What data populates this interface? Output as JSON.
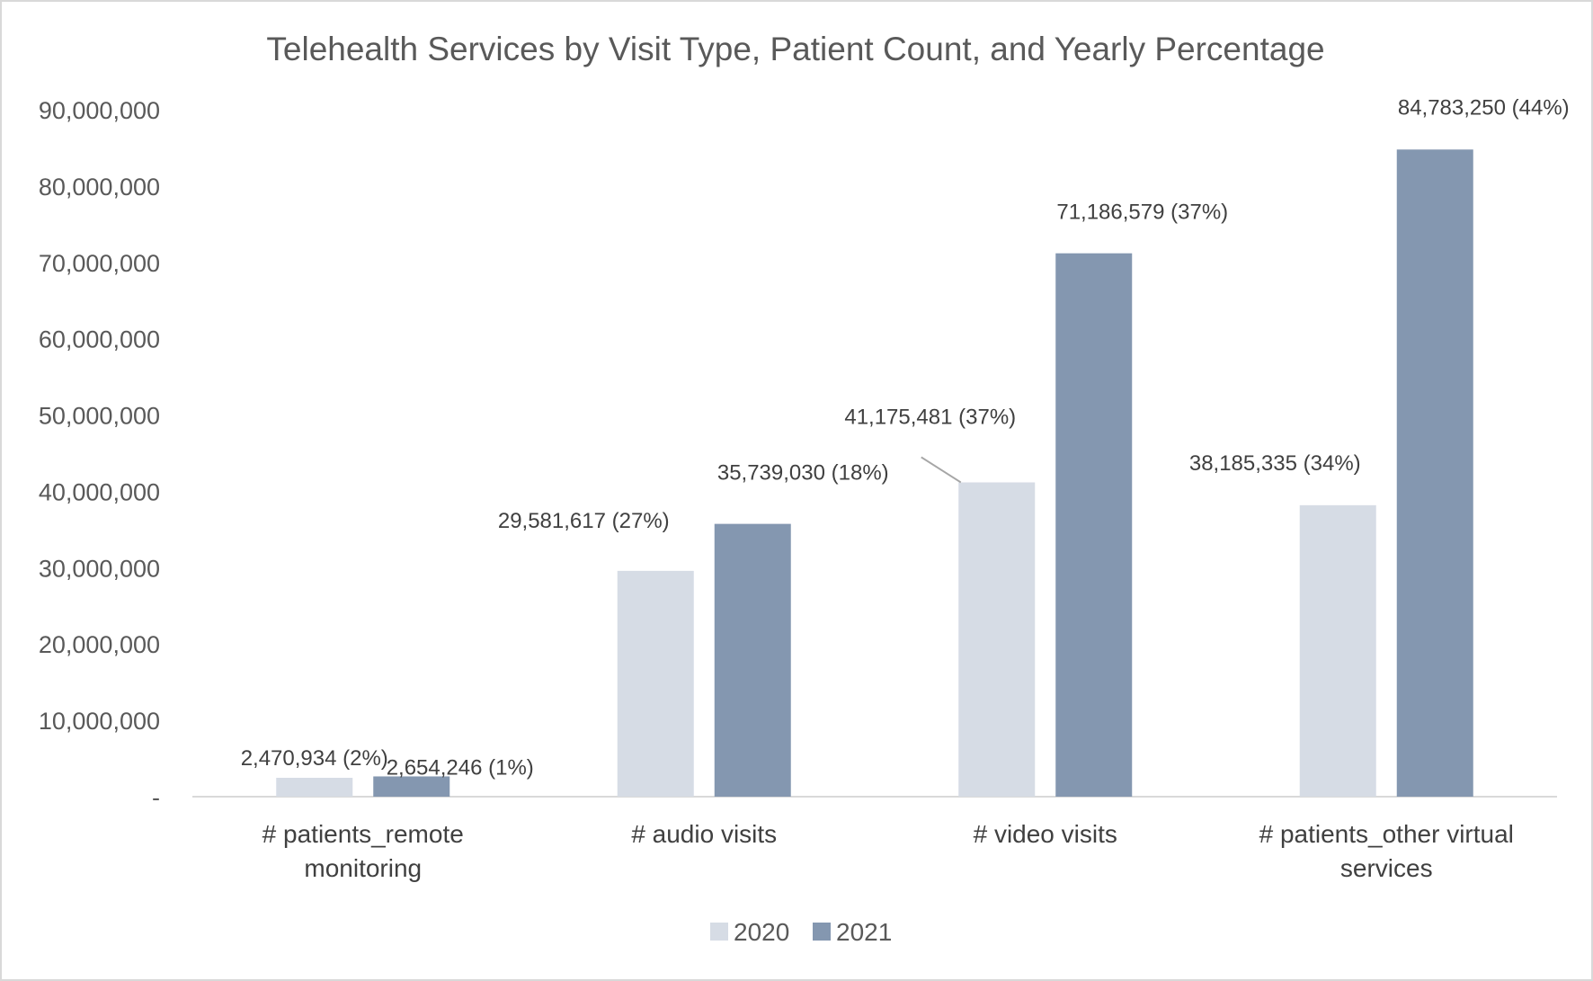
{
  "chart_data": {
    "type": "bar",
    "title": "Telehealth Services by Visit Type, Patient Count, and Yearly Percentage",
    "categories": [
      [
        "# patients_remote",
        "monitoring"
      ],
      [
        "# audio visits"
      ],
      [
        "# video visits"
      ],
      [
        "# patients_other virtual",
        "services"
      ]
    ],
    "series": [
      {
        "name": "2020",
        "color": "#d6dce5",
        "values": [
          2470934,
          29581617,
          41175481,
          38185335
        ],
        "labels": [
          "2,470,934 (2%)",
          "29,581,617 (27%)",
          "41,175,481 (37%)",
          "38,185,335 (34%)"
        ]
      },
      {
        "name": "2021",
        "color": "#8497b0",
        "values": [
          2654246,
          35739030,
          71186579,
          84783250
        ],
        "labels": [
          "2,654,246 (1%)",
          "35,739,030 (18%)",
          "71,186,579 (37%)",
          "84,783,250 (44%)"
        ]
      }
    ],
    "ylim": [
      0,
      90000000
    ],
    "yticks": [
      0,
      10000000,
      20000000,
      30000000,
      40000000,
      50000000,
      60000000,
      70000000,
      80000000,
      90000000
    ],
    "ytick_labels": [
      "-",
      "10,000,000",
      "20,000,000",
      "30,000,000",
      "40,000,000",
      "50,000,000",
      "60,000,000",
      "70,000,000",
      "80,000,000",
      "90,000,000"
    ],
    "grid": false,
    "legend": "bottom",
    "axis_color": "#d9d9d9"
  }
}
